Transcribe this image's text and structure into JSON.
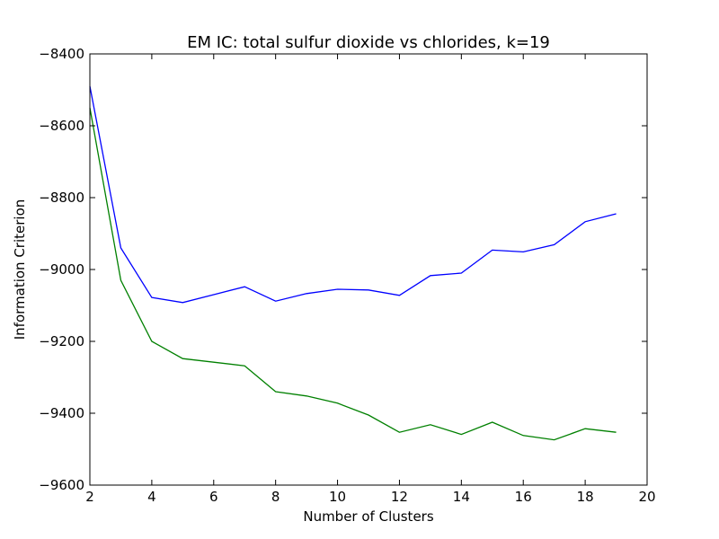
{
  "chart_data": {
    "type": "line",
    "title": "EM IC: total sulfur dioxide vs chlorides, k=19",
    "xlabel": "Number of Clusters",
    "ylabel": "Information Criterion",
    "xlim": [
      2,
      20
    ],
    "ylim": [
      -9600,
      -8400
    ],
    "xticks": [
      2,
      4,
      6,
      8,
      10,
      12,
      14,
      16,
      18,
      20
    ],
    "yticks": [
      -9600,
      -9400,
      -9200,
      -9000,
      -8800,
      -8600,
      -8400
    ],
    "x": [
      2,
      3,
      4,
      5,
      6,
      7,
      8,
      9,
      10,
      11,
      12,
      13,
      14,
      15,
      16,
      17,
      18,
      19
    ],
    "series": [
      {
        "name": "series-1",
        "color": "#0000ff",
        "values": [
          -8490,
          -8940,
          -9078,
          -9092,
          -9070,
          -9048,
          -9088,
          -9067,
          -9055,
          -9057,
          -9072,
          -9017,
          -9010,
          -8946,
          -8951,
          -8931,
          -8867,
          -8845
        ]
      },
      {
        "name": "series-2",
        "color": "#008000",
        "values": [
          -8550,
          -9030,
          -9200,
          -9248,
          -9258,
          -9268,
          -9340,
          -9352,
          -9372,
          -9405,
          -9453,
          -9432,
          -9459,
          -9425,
          -9462,
          -9474,
          -9443,
          -9453
        ]
      }
    ],
    "grid": false,
    "legend": "none"
  }
}
